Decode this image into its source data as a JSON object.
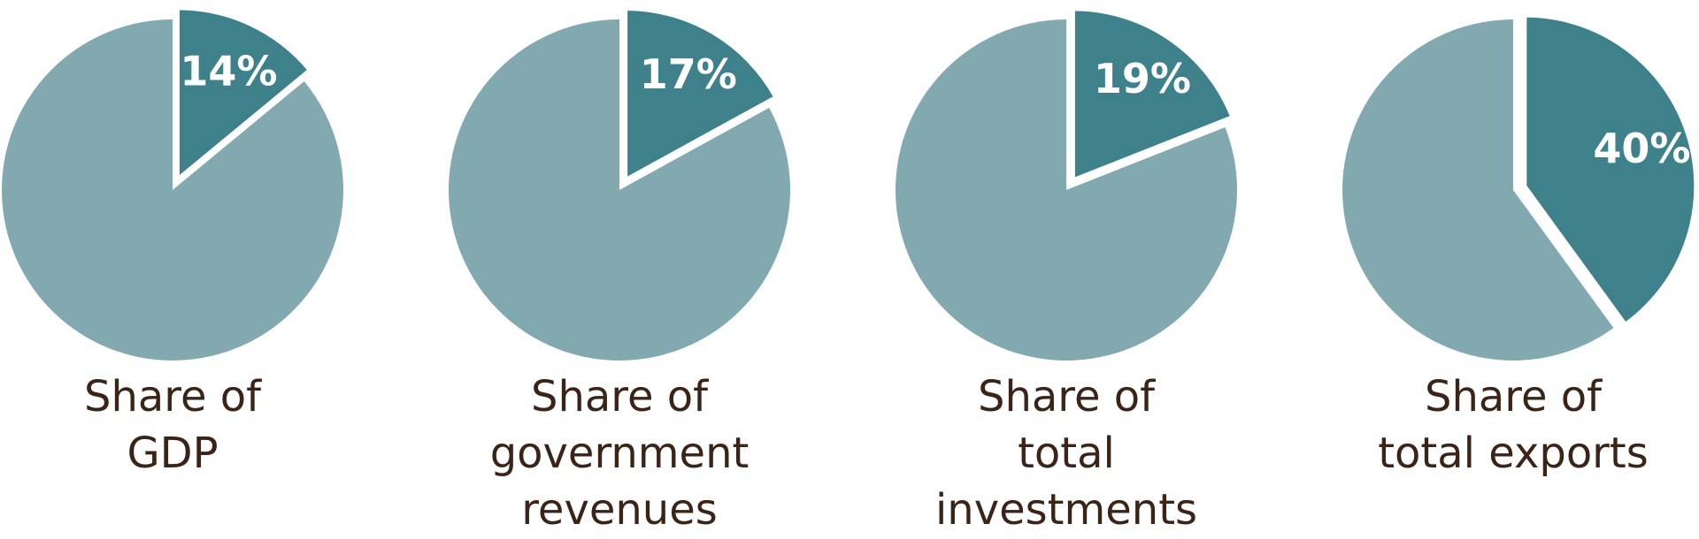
{
  "chart_data": [
    {
      "type": "pie",
      "values": [
        14,
        86
      ],
      "data_labels": [
        "14%",
        ""
      ],
      "caption": [
        "Share of",
        "GDP"
      ]
    },
    {
      "type": "pie",
      "values": [
        17,
        83
      ],
      "data_labels": [
        "17%",
        ""
      ],
      "caption": [
        "Share of",
        "government",
        "revenues"
      ]
    },
    {
      "type": "pie",
      "values": [
        19,
        81
      ],
      "data_labels": [
        "19%",
        ""
      ],
      "caption": [
        "Share of",
        "total",
        "investments"
      ]
    },
    {
      "type": "pie",
      "values": [
        40,
        60
      ],
      "data_labels": [
        "40%",
        ""
      ],
      "caption": [
        "Share of",
        "total exports"
      ]
    }
  ],
  "colors": {
    "highlight_slice": "#3f818a",
    "rest_slice": "#83a9b0",
    "slice_label": "#ffffff",
    "caption_text": "#3a2418",
    "separator": "#ffffff"
  }
}
